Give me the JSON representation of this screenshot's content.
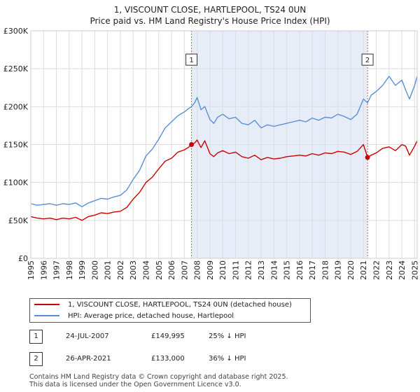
{
  "header": {
    "title": "1, VISCOUNT CLOSE, HARTLEPOOL, TS24 0UN",
    "subtitle": "Price paid vs. HM Land Registry's House Price Index (HPI)"
  },
  "chart_data": {
    "type": "line",
    "title": "1, VISCOUNT CLOSE, HARTLEPOOL, TS24 0UN",
    "subtitle": "Price paid vs. HM Land Registry's House Price Index (HPI)",
    "xlabel": "",
    "ylabel": "",
    "xlim": [
      1995,
      2025.2
    ],
    "ylim": [
      0,
      300000
    ],
    "ytick_values": [
      0,
      50000,
      100000,
      150000,
      200000,
      250000,
      300000
    ],
    "ytick_labels": [
      "£0",
      "£50K",
      "£100K",
      "£150K",
      "£200K",
      "£250K",
      "£300K"
    ],
    "xtick_labels": [
      "1995",
      "1996",
      "1997",
      "1998",
      "1999",
      "2000",
      "2001",
      "2002",
      "2003",
      "2004",
      "2005",
      "2006",
      "2007",
      "2008",
      "2009",
      "2010",
      "2011",
      "2012",
      "2013",
      "2014",
      "2015",
      "2016",
      "2017",
      "2018",
      "2019",
      "2020",
      "2021",
      "2022",
      "2023",
      "2024",
      "2025"
    ],
    "grid": true,
    "shaded_region": [
      2007.56,
      2021.32
    ],
    "series": [
      {
        "name": "1, VISCOUNT CLOSE, HARTLEPOOL, TS24 0UN (detached house)",
        "color": "#cc0000",
        "x": [
          1995.0,
          1995.5,
          1996.0,
          1996.5,
          1997.0,
          1997.5,
          1998.0,
          1998.5,
          1999.0,
          1999.5,
          2000.0,
          2000.5,
          2001.0,
          2001.5,
          2002.0,
          2002.5,
          2003.0,
          2003.5,
          2004.0,
          2004.5,
          2005.0,
          2005.5,
          2006.0,
          2006.5,
          2007.0,
          2007.3,
          2007.56,
          2007.8,
          2008.0,
          2008.3,
          2008.6,
          2009.0,
          2009.3,
          2009.6,
          2010.0,
          2010.5,
          2011.0,
          2011.5,
          2012.0,
          2012.5,
          2013.0,
          2013.5,
          2014.0,
          2014.5,
          2015.0,
          2015.5,
          2016.0,
          2016.5,
          2017.0,
          2017.5,
          2018.0,
          2018.5,
          2019.0,
          2019.5,
          2020.0,
          2020.5,
          2021.0,
          2021.32,
          2021.6,
          2022.0,
          2022.5,
          2023.0,
          2023.5,
          2024.0,
          2024.3,
          2024.6,
          2025.0,
          2025.2
        ],
        "values": [
          55000,
          53000,
          52000,
          53000,
          51000,
          53000,
          52000,
          54000,
          50000,
          55000,
          57000,
          60000,
          59000,
          61000,
          62000,
          67000,
          78000,
          87000,
          100000,
          107000,
          118000,
          128000,
          132000,
          140000,
          143000,
          146000,
          149995,
          152000,
          156000,
          146000,
          155000,
          138000,
          134000,
          139000,
          142000,
          138000,
          140000,
          134000,
          132000,
          136000,
          130000,
          133000,
          131000,
          132000,
          134000,
          135000,
          136000,
          135000,
          138000,
          136000,
          139000,
          138000,
          141000,
          140000,
          137000,
          141000,
          150000,
          133000,
          136000,
          139000,
          145000,
          147000,
          142000,
          150000,
          148000,
          136000,
          148000,
          155000
        ]
      },
      {
        "name": "HPI: Average price, detached house, Hartlepool",
        "color": "#5b8fd6",
        "x": [
          1995.0,
          1995.5,
          1996.0,
          1996.5,
          1997.0,
          1997.5,
          1998.0,
          1998.5,
          1999.0,
          1999.5,
          2000.0,
          2000.5,
          2001.0,
          2001.5,
          2002.0,
          2002.5,
          2003.0,
          2003.5,
          2004.0,
          2004.5,
          2005.0,
          2005.5,
          2006.0,
          2006.5,
          2007.0,
          2007.3,
          2007.56,
          2007.8,
          2008.0,
          2008.3,
          2008.6,
          2009.0,
          2009.3,
          2009.6,
          2010.0,
          2010.5,
          2011.0,
          2011.5,
          2012.0,
          2012.5,
          2013.0,
          2013.5,
          2014.0,
          2014.5,
          2015.0,
          2015.5,
          2016.0,
          2016.5,
          2017.0,
          2017.5,
          2018.0,
          2018.5,
          2019.0,
          2019.5,
          2020.0,
          2020.5,
          2021.0,
          2021.32,
          2021.6,
          2022.0,
          2022.5,
          2023.0,
          2023.5,
          2024.0,
          2024.3,
          2024.6,
          2025.0,
          2025.2
        ],
        "values": [
          72000,
          70000,
          71000,
          72000,
          70000,
          72000,
          71000,
          73000,
          68000,
          73000,
          76000,
          79000,
          78000,
          81000,
          83000,
          90000,
          104000,
          116000,
          135000,
          144000,
          157000,
          172000,
          180000,
          188000,
          193000,
          197000,
          200000,
          205000,
          212000,
          196000,
          200000,
          183000,
          178000,
          186000,
          190000,
          184000,
          186000,
          178000,
          176000,
          182000,
          172000,
          176000,
          174000,
          176000,
          178000,
          180000,
          182000,
          180000,
          185000,
          182000,
          186000,
          185000,
          190000,
          187000,
          183000,
          190000,
          210000,
          205000,
          215000,
          220000,
          228000,
          240000,
          228000,
          235000,
          222000,
          210000,
          228000,
          240000
        ]
      }
    ],
    "sales": [
      {
        "marker": "1",
        "x": 2007.56,
        "price": 149995
      },
      {
        "marker": "2",
        "x": 2021.32,
        "price": 133000
      }
    ]
  },
  "legend": {
    "items": [
      {
        "label": "1, VISCOUNT CLOSE, HARTLEPOOL, TS24 0UN (detached house)",
        "color": "#cc0000"
      },
      {
        "label": "HPI: Average price, detached house, Hartlepool",
        "color": "#5b8fd6"
      }
    ]
  },
  "sales_table": [
    {
      "num": "1",
      "date": "24-JUL-2007",
      "price": "£149,995",
      "hpi": "25% ↓ HPI"
    },
    {
      "num": "2",
      "date": "26-APR-2021",
      "price": "£133,000",
      "hpi": "36% ↓ HPI"
    }
  ],
  "footer": {
    "line1": "Contains HM Land Registry data © Crown copyright and database right 2025.",
    "line2": "This data is licensed under the Open Government Licence v3.0."
  }
}
